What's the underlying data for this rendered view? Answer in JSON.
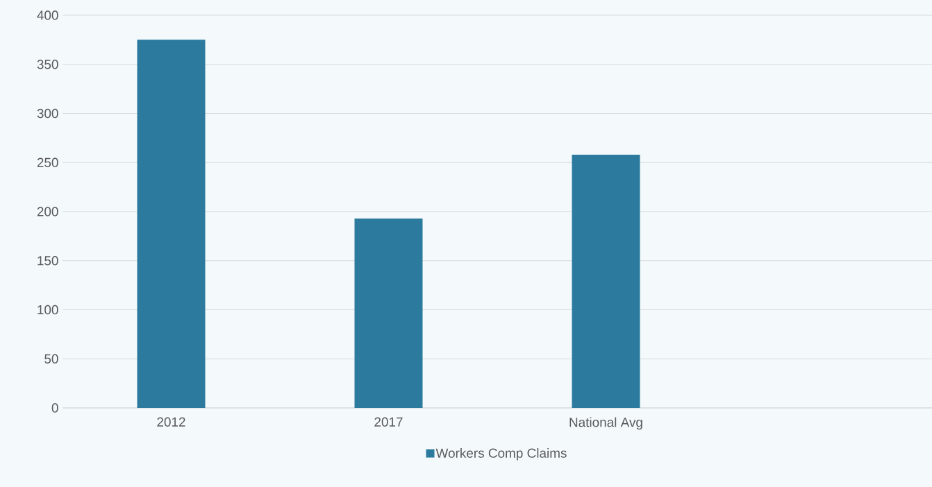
{
  "chart_data": {
    "type": "bar",
    "categories": [
      "2012",
      "2017",
      "National Avg",
      null
    ],
    "series": [
      {
        "name": "Workers Comp Claims",
        "color": "#2c7b9f",
        "values": [
          375,
          193,
          258,
          null
        ]
      }
    ],
    "ylim": [
      0,
      400
    ],
    "yticks": [
      0,
      50,
      100,
      150,
      200,
      250,
      300,
      350,
      400
    ],
    "grid": "y",
    "legend": "bottom"
  }
}
